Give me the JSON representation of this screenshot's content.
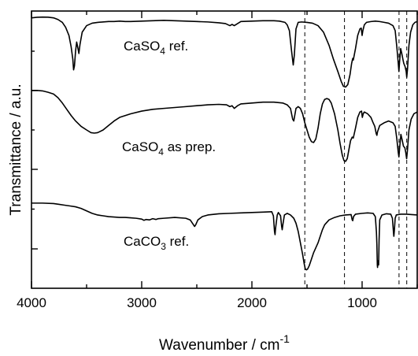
{
  "chart_data": {
    "type": "line",
    "xlabel": "Wavenumber / cm",
    "xlabel_superscript": "-1",
    "ylabel": "Transmittance / a.u.",
    "xlim": [
      4000,
      500
    ],
    "x_reversed": true,
    "x_ticks": [
      4000,
      3000,
      2000,
      1000
    ],
    "x_minor_ticks": [
      3500,
      2500,
      1500,
      500
    ],
    "y_tick_count": 4,
    "grid": false,
    "reference_lines": [
      1520,
      1160,
      665,
      595
    ],
    "series": [
      {
        "label_parts": [
          {
            "t": "CaSO"
          },
          {
            "t": "4",
            "sub": true
          },
          {
            "t": " ref."
          }
        ],
        "points": [
          [
            4000,
            0.955
          ],
          [
            3950,
            0.962
          ],
          [
            3900,
            0.965
          ],
          [
            3850,
            0.963
          ],
          [
            3800,
            0.955
          ],
          [
            3760,
            0.935
          ],
          [
            3720,
            0.9
          ],
          [
            3690,
            0.84
          ],
          [
            3660,
            0.74
          ],
          [
            3640,
            0.6
          ],
          [
            3625,
            0.45
          ],
          [
            3618,
            0.32
          ],
          [
            3610,
            0.37
          ],
          [
            3600,
            0.55
          ],
          [
            3590,
            0.66
          ],
          [
            3578,
            0.58
          ],
          [
            3570,
            0.52
          ],
          [
            3560,
            0.63
          ],
          [
            3540,
            0.78
          ],
          [
            3500,
            0.86
          ],
          [
            3450,
            0.89
          ],
          [
            3400,
            0.9
          ],
          [
            3300,
            0.91
          ],
          [
            3250,
            0.91
          ],
          [
            3200,
            0.915
          ],
          [
            3150,
            0.91
          ],
          [
            3100,
            0.91
          ],
          [
            3000,
            0.915
          ],
          [
            2900,
            0.92
          ],
          [
            2800,
            0.925
          ],
          [
            2700,
            0.92
          ],
          [
            2600,
            0.915
          ],
          [
            2500,
            0.91
          ],
          [
            2400,
            0.905
          ],
          [
            2300,
            0.895
          ],
          [
            2240,
            0.885
          ],
          [
            2200,
            0.86
          ],
          [
            2180,
            0.875
          ],
          [
            2160,
            0.86
          ],
          [
            2130,
            0.885
          ],
          [
            2100,
            0.91
          ],
          [
            2000,
            0.915
          ],
          [
            1900,
            0.92
          ],
          [
            1800,
            0.92
          ],
          [
            1750,
            0.915
          ],
          [
            1700,
            0.9
          ],
          [
            1680,
            0.87
          ],
          [
            1660,
            0.8
          ],
          [
            1640,
            0.55
          ],
          [
            1625,
            0.38
          ],
          [
            1615,
            0.5
          ],
          [
            1600,
            0.82
          ],
          [
            1580,
            0.9
          ],
          [
            1550,
            0.905
          ],
          [
            1500,
            0.9
          ],
          [
            1450,
            0.89
          ],
          [
            1400,
            0.86
          ],
          [
            1350,
            0.78
          ],
          [
            1300,
            0.62
          ],
          [
            1260,
            0.45
          ],
          [
            1220,
            0.3
          ],
          [
            1190,
            0.18
          ],
          [
            1170,
            0.12
          ],
          [
            1150,
            0.11
          ],
          [
            1130,
            0.14
          ],
          [
            1110,
            0.26
          ],
          [
            1095,
            0.4
          ],
          [
            1085,
            0.46
          ],
          [
            1080,
            0.44
          ],
          [
            1060,
            0.58
          ],
          [
            1040,
            0.74
          ],
          [
            1020,
            0.82
          ],
          [
            1008,
            0.83
          ],
          [
            1000,
            0.74
          ],
          [
            993,
            0.8
          ],
          [
            980,
            0.87
          ],
          [
            960,
            0.9
          ],
          [
            920,
            0.91
          ],
          [
            880,
            0.915
          ],
          [
            840,
            0.91
          ],
          [
            800,
            0.9
          ],
          [
            760,
            0.89
          ],
          [
            720,
            0.86
          ],
          [
            700,
            0.8
          ],
          [
            685,
            0.6
          ],
          [
            672,
            0.4
          ],
          [
            666,
            0.3
          ],
          [
            660,
            0.42
          ],
          [
            650,
            0.58
          ],
          [
            640,
            0.52
          ],
          [
            630,
            0.45
          ],
          [
            622,
            0.4
          ],
          [
            610,
            0.36
          ],
          [
            600,
            0.3
          ],
          [
            595,
            0.23
          ],
          [
            588,
            0.33
          ],
          [
            575,
            0.62
          ],
          [
            560,
            0.78
          ],
          [
            540,
            0.87
          ],
          [
            520,
            0.9
          ],
          [
            500,
            0.91
          ]
        ]
      },
      {
        "label_parts": [
          {
            "t": "CaSO"
          },
          {
            "t": "4",
            "sub": true
          },
          {
            "t": " as prep."
          }
        ],
        "points": [
          [
            4000,
            0.94
          ],
          [
            3950,
            0.94
          ],
          [
            3900,
            0.935
          ],
          [
            3850,
            0.92
          ],
          [
            3800,
            0.9
          ],
          [
            3760,
            0.86
          ],
          [
            3720,
            0.8
          ],
          [
            3680,
            0.73
          ],
          [
            3640,
            0.66
          ],
          [
            3600,
            0.6
          ],
          [
            3550,
            0.54
          ],
          [
            3500,
            0.5
          ],
          [
            3460,
            0.47
          ],
          [
            3430,
            0.465
          ],
          [
            3400,
            0.47
          ],
          [
            3350,
            0.5
          ],
          [
            3300,
            0.55
          ],
          [
            3250,
            0.6
          ],
          [
            3200,
            0.64
          ],
          [
            3100,
            0.68
          ],
          [
            3000,
            0.71
          ],
          [
            2900,
            0.73
          ],
          [
            2800,
            0.74
          ],
          [
            2700,
            0.75
          ],
          [
            2600,
            0.76
          ],
          [
            2500,
            0.77
          ],
          [
            2400,
            0.78
          ],
          [
            2300,
            0.785
          ],
          [
            2230,
            0.78
          ],
          [
            2200,
            0.76
          ],
          [
            2180,
            0.77
          ],
          [
            2160,
            0.74
          ],
          [
            2130,
            0.77
          ],
          [
            2100,
            0.79
          ],
          [
            2000,
            0.8
          ],
          [
            1900,
            0.81
          ],
          [
            1800,
            0.81
          ],
          [
            1720,
            0.8
          ],
          [
            1680,
            0.78
          ],
          [
            1650,
            0.74
          ],
          [
            1630,
            0.62
          ],
          [
            1620,
            0.6
          ],
          [
            1600,
            0.74
          ],
          [
            1580,
            0.76
          ],
          [
            1560,
            0.74
          ],
          [
            1540,
            0.68
          ],
          [
            1520,
            0.58
          ],
          [
            1500,
            0.5
          ],
          [
            1480,
            0.42
          ],
          [
            1460,
            0.37
          ],
          [
            1440,
            0.36
          ],
          [
            1420,
            0.4
          ],
          [
            1400,
            0.52
          ],
          [
            1380,
            0.68
          ],
          [
            1360,
            0.79
          ],
          [
            1340,
            0.84
          ],
          [
            1320,
            0.85
          ],
          [
            1300,
            0.84
          ],
          [
            1280,
            0.8
          ],
          [
            1250,
            0.68
          ],
          [
            1220,
            0.5
          ],
          [
            1200,
            0.35
          ],
          [
            1180,
            0.22
          ],
          [
            1165,
            0.16
          ],
          [
            1150,
            0.15
          ],
          [
            1135,
            0.18
          ],
          [
            1120,
            0.28
          ],
          [
            1105,
            0.38
          ],
          [
            1090,
            0.42
          ],
          [
            1080,
            0.41
          ],
          [
            1060,
            0.52
          ],
          [
            1040,
            0.64
          ],
          [
            1020,
            0.7
          ],
          [
            1005,
            0.71
          ],
          [
            998,
            0.64
          ],
          [
            990,
            0.68
          ],
          [
            980,
            0.7
          ],
          [
            950,
            0.68
          ],
          [
            920,
            0.64
          ],
          [
            900,
            0.58
          ],
          [
            885,
            0.54
          ],
          [
            872,
            0.46
          ],
          [
            866,
            0.44
          ],
          [
            860,
            0.48
          ],
          [
            840,
            0.55
          ],
          [
            800,
            0.58
          ],
          [
            760,
            0.6
          ],
          [
            720,
            0.58
          ],
          [
            700,
            0.54
          ],
          [
            685,
            0.4
          ],
          [
            672,
            0.25
          ],
          [
            666,
            0.2
          ],
          [
            658,
            0.32
          ],
          [
            648,
            0.45
          ],
          [
            635,
            0.38
          ],
          [
            625,
            0.32
          ],
          [
            612,
            0.3
          ],
          [
            604,
            0.25
          ],
          [
            596,
            0.18
          ],
          [
            588,
            0.28
          ],
          [
            575,
            0.5
          ],
          [
            555,
            0.62
          ],
          [
            530,
            0.68
          ],
          [
            500,
            0.7
          ]
        ]
      },
      {
        "label_parts": [
          {
            "t": "CaCO"
          },
          {
            "t": "3",
            "sub": true
          },
          {
            "t": " ref."
          }
        ],
        "points": [
          [
            4000,
            0.905
          ],
          [
            3900,
            0.905
          ],
          [
            3800,
            0.9
          ],
          [
            3750,
            0.89
          ],
          [
            3700,
            0.88
          ],
          [
            3650,
            0.87
          ],
          [
            3600,
            0.86
          ],
          [
            3550,
            0.84
          ],
          [
            3500,
            0.81
          ],
          [
            3450,
            0.78
          ],
          [
            3400,
            0.76
          ],
          [
            3350,
            0.75
          ],
          [
            3300,
            0.74
          ],
          [
            3250,
            0.735
          ],
          [
            3200,
            0.73
          ],
          [
            3150,
            0.73
          ],
          [
            3100,
            0.725
          ],
          [
            3050,
            0.72
          ],
          [
            3000,
            0.71
          ],
          [
            2980,
            0.695
          ],
          [
            2960,
            0.705
          ],
          [
            2930,
            0.7
          ],
          [
            2900,
            0.715
          ],
          [
            2870,
            0.705
          ],
          [
            2850,
            0.715
          ],
          [
            2800,
            0.72
          ],
          [
            2700,
            0.73
          ],
          [
            2600,
            0.72
          ],
          [
            2560,
            0.7
          ],
          [
            2540,
            0.66
          ],
          [
            2520,
            0.62
          ],
          [
            2510,
            0.64
          ],
          [
            2490,
            0.7
          ],
          [
            2450,
            0.74
          ],
          [
            2400,
            0.76
          ],
          [
            2300,
            0.775
          ],
          [
            2200,
            0.78
          ],
          [
            2100,
            0.785
          ],
          [
            2000,
            0.79
          ],
          [
            1900,
            0.795
          ],
          [
            1820,
            0.8
          ],
          [
            1805,
            0.75
          ],
          [
            1795,
            0.56
          ],
          [
            1790,
            0.52
          ],
          [
            1785,
            0.6
          ],
          [
            1770,
            0.76
          ],
          [
            1760,
            0.79
          ],
          [
            1740,
            0.75
          ],
          [
            1730,
            0.62
          ],
          [
            1725,
            0.58
          ],
          [
            1718,
            0.65
          ],
          [
            1705,
            0.76
          ],
          [
            1680,
            0.78
          ],
          [
            1650,
            0.76
          ],
          [
            1620,
            0.72
          ],
          [
            1600,
            0.66
          ],
          [
            1580,
            0.56
          ],
          [
            1560,
            0.42
          ],
          [
            1540,
            0.28
          ],
          [
            1525,
            0.16
          ],
          [
            1515,
            0.1
          ],
          [
            1505,
            0.09
          ],
          [
            1495,
            0.1
          ],
          [
            1480,
            0.14
          ],
          [
            1460,
            0.22
          ],
          [
            1440,
            0.3
          ],
          [
            1420,
            0.36
          ],
          [
            1400,
            0.42
          ],
          [
            1380,
            0.5
          ],
          [
            1360,
            0.58
          ],
          [
            1340,
            0.64
          ],
          [
            1300,
            0.7
          ],
          [
            1250,
            0.73
          ],
          [
            1200,
            0.75
          ],
          [
            1150,
            0.76
          ],
          [
            1100,
            0.765
          ],
          [
            1090,
            0.7
          ],
          [
            1085,
            0.69
          ],
          [
            1078,
            0.74
          ],
          [
            1060,
            0.77
          ],
          [
            1000,
            0.78
          ],
          [
            950,
            0.785
          ],
          [
            900,
            0.78
          ],
          [
            880,
            0.74
          ],
          [
            870,
            0.55
          ],
          [
            866,
            0.4
          ],
          [
            862,
            0.15
          ],
          [
            860,
            0.12
          ],
          [
            856,
            0.2
          ],
          [
            850,
            0.15
          ],
          [
            846,
            0.45
          ],
          [
            840,
            0.7
          ],
          [
            820,
            0.76
          ],
          [
            780,
            0.775
          ],
          [
            740,
            0.77
          ],
          [
            725,
            0.72
          ],
          [
            715,
            0.54
          ],
          [
            712,
            0.5
          ],
          [
            708,
            0.56
          ],
          [
            700,
            0.72
          ],
          [
            690,
            0.76
          ],
          [
            650,
            0.77
          ],
          [
            600,
            0.77
          ],
          [
            550,
            0.765
          ],
          [
            500,
            0.76
          ]
        ]
      }
    ]
  }
}
